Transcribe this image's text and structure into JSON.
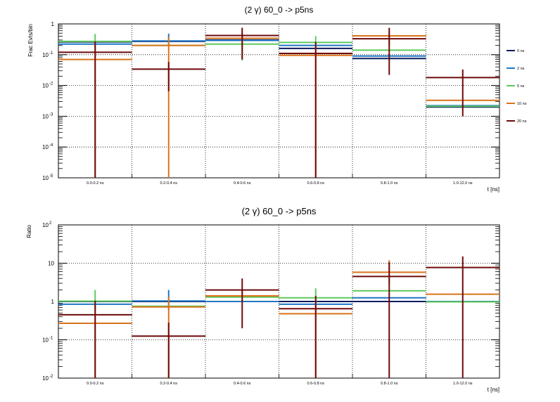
{
  "chart_data": [
    {
      "type": "bar",
      "title": "(2 γ) 60_0 -> p5ns",
      "xlabel": "t [ns]",
      "ylabel": "Frac Evts/bin",
      "y_scale": "log",
      "ylim": [
        1e-05,
        1
      ],
      "y_ticks": [
        {
          "value": 1,
          "label": "1"
        },
        {
          "value": 0.1,
          "label": "10",
          "exp": "-1"
        },
        {
          "value": 0.01,
          "label": "10",
          "exp": "-2"
        },
        {
          "value": 0.001,
          "label": "10",
          "exp": "-3"
        },
        {
          "value": 0.0001,
          "label": "10",
          "exp": "-4"
        },
        {
          "value": 1e-05,
          "label": "10",
          "exp": "-5"
        }
      ],
      "grid": true,
      "legend": "right",
      "categories": [
        "0.0-0.2 ns",
        "0.2-0.4 ns",
        "0.4-0.6 ns",
        "0.6-0.8 ns",
        "0.8-1.0 ns",
        "1.0-12.0 ns"
      ],
      "series": [
        {
          "name": "0 ns",
          "color": "#0a1a5c",
          "values": [
            0.26,
            0.27,
            0.3,
            0.16,
            0.075,
            0.002
          ],
          "err_lo": [
            0.26,
            0.27,
            0.3,
            0.16,
            0.075,
            0.002
          ],
          "err_hi": [
            0.26,
            0.27,
            0.3,
            0.16,
            0.075,
            0.002
          ],
          "show_err": false
        },
        {
          "name": "2 ns",
          "color": "#1f77c4",
          "values": [
            0.22,
            0.28,
            0.29,
            0.2,
            0.09,
            0.0022
          ],
          "err_lo": [
            0.22,
            0.19,
            0.29,
            0.2,
            0.07,
            0.0022
          ],
          "err_hi": [
            0.22,
            0.48,
            0.29,
            0.2,
            0.1,
            0.0022
          ],
          "show_err": true
        },
        {
          "name": "5 ns",
          "color": "#5ec95e",
          "values": [
            0.27,
            0.2,
            0.22,
            0.25,
            0.14,
            0.0021
          ],
          "err_lo": [
            0.15,
            0.2,
            0.065,
            0.15,
            0.14,
            0.0021
          ],
          "err_hi": [
            0.47,
            0.2,
            0.22,
            0.4,
            0.14,
            0.0021
          ],
          "show_err": true
        },
        {
          "name": "10 ns",
          "color": "#d9731a",
          "values": [
            0.07,
            0.2,
            0.34,
            0.095,
            0.41,
            0.0033
          ],
          "err_lo": [
            1e-05,
            1e-05,
            0.2,
            1e-05,
            0.2,
            0.0033
          ],
          "err_hi": [
            0.2,
            0.38,
            0.5,
            0.19,
            0.6,
            0.0033
          ],
          "show_err": true
        },
        {
          "name": "20 ns",
          "color": "#6e0a0a",
          "values": [
            0.12,
            0.034,
            0.42,
            0.11,
            0.33,
            0.018
          ],
          "err_lo": [
            1e-05,
            0.0065,
            0.07,
            1e-05,
            0.022,
            0.001
          ],
          "err_hi": [
            0.27,
            0.058,
            0.75,
            0.26,
            0.75,
            0.033
          ],
          "show_err": true
        }
      ]
    },
    {
      "type": "bar",
      "title": "(2 γ) 60_0 -> p5ns",
      "xlabel": "t [ns]",
      "ylabel": "Ratio",
      "y_scale": "log",
      "ylim": [
        0.01,
        100
      ],
      "y_ticks": [
        {
          "value": 100,
          "label": "10",
          "exp": "2"
        },
        {
          "value": 10,
          "label": "10"
        },
        {
          "value": 1,
          "label": "1"
        },
        {
          "value": 0.1,
          "label": "10",
          "exp": "-1"
        },
        {
          "value": 0.01,
          "label": "10",
          "exp": "-2"
        }
      ],
      "grid": true,
      "categories": [
        "0.0-0.2 ns",
        "0.2-0.4 ns",
        "0.4-0.6 ns",
        "0.6-0.8 ns",
        "0.8-1.0 ns",
        "1.0-12.0 ns"
      ],
      "series": [
        {
          "name": "0 ns",
          "color": "#0a1a5c",
          "values": [
            1,
            1,
            1,
            1,
            1,
            1
          ],
          "err_lo": [
            1,
            1,
            1,
            1,
            1,
            1
          ],
          "err_hi": [
            1,
            1,
            1,
            1,
            1,
            1
          ],
          "show_err": false
        },
        {
          "name": "2 ns",
          "color": "#1f77c4",
          "values": [
            0.85,
            1.03,
            1.0,
            0.85,
            1.25,
            1.0
          ],
          "err_lo": [
            0.85,
            0.6,
            1.0,
            0.85,
            1.25,
            1.0
          ],
          "err_hi": [
            0.85,
            2.0,
            1.0,
            0.85,
            1.25,
            1.0
          ],
          "show_err": true
        },
        {
          "name": "5 ns",
          "color": "#5ec95e",
          "values": [
            1.02,
            0.75,
            1.3,
            1.25,
            1.9,
            0.98
          ],
          "err_lo": [
            0.6,
            0.75,
            1.3,
            0.6,
            1.9,
            0.98
          ],
          "err_hi": [
            2.0,
            0.75,
            1.3,
            2.2,
            1.9,
            0.98
          ],
          "show_err": true
        },
        {
          "name": "10 ns",
          "color": "#d9731a",
          "values": [
            0.27,
            0.72,
            1.4,
            0.48,
            5.8,
            1.55
          ],
          "err_lo": [
            0.01,
            0.01,
            1.0,
            0.01,
            3.0,
            1.55
          ],
          "err_hi": [
            0.8,
            1.3,
            1.9,
            0.9,
            12,
            1.55
          ],
          "show_err": true
        },
        {
          "name": "20 ns",
          "color": "#6e0a0a",
          "values": [
            0.45,
            0.125,
            2.0,
            0.65,
            4.5,
            7.7
          ],
          "err_lo": [
            0.01,
            0.01,
            0.2,
            0.01,
            0.01,
            0.01
          ],
          "err_hi": [
            1.05,
            0.28,
            4.0,
            1.4,
            10.5,
            15
          ],
          "show_err": true
        }
      ]
    }
  ]
}
